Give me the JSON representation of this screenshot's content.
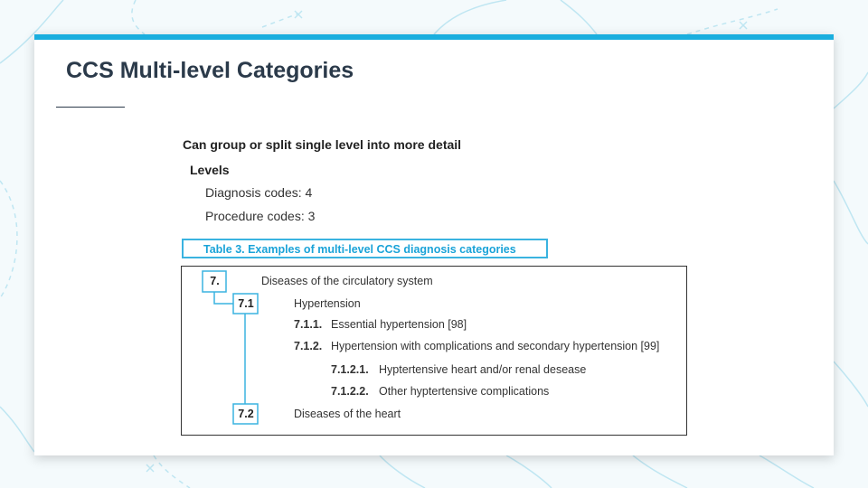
{
  "slide": {
    "title": "CCS Multi-level Categories",
    "heading": "Can group or split single level into more detail",
    "levels_label": "Levels",
    "levels": [
      "Diagnosis codes: 4",
      "Procedure codes: 3"
    ]
  },
  "table": {
    "caption": "Table 3. Examples of multi-level CCS diagnosis categories",
    "rows": [
      {
        "code": "7.",
        "label": "Diseases of the circulatory system"
      },
      {
        "code": "7.1",
        "label": "Hypertension"
      },
      {
        "code": "7.1.1.",
        "label": "Essential hypertension [98]"
      },
      {
        "code": "7.1.2.",
        "label": "Hypertension with complications and secondary hypertension [99]"
      },
      {
        "code": "7.1.2.1.",
        "label": "Hyptertensive heart and/or renal desease"
      },
      {
        "code": "7.1.2.2.",
        "label": "Other hyptertensive complications"
      },
      {
        "code": "7.2",
        "label": "Diseases of the heart"
      }
    ]
  },
  "colors": {
    "accent": "#1aaede",
    "title": "#2b3a4a"
  }
}
